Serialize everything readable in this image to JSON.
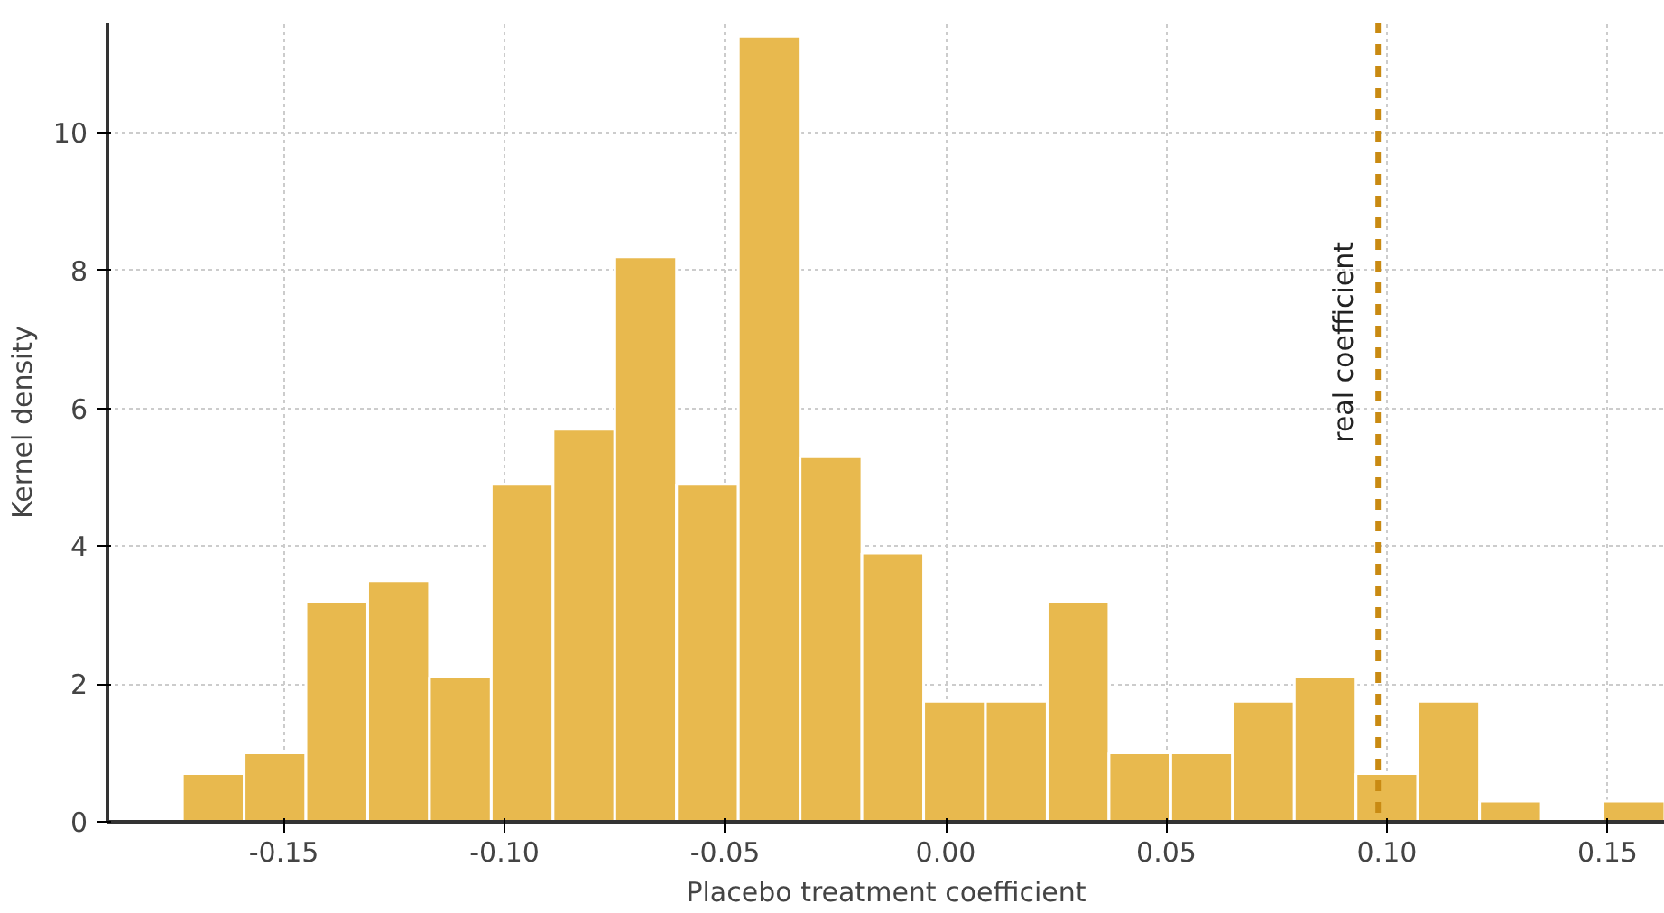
{
  "chart_data": {
    "type": "histogram",
    "xlabel": "Placebo treatment coefficient",
    "ylabel": "Kernel density",
    "bins": [
      -0.173,
      -0.159,
      -0.145,
      -0.131,
      -0.117,
      -0.103,
      -0.089,
      -0.075,
      -0.061,
      -0.047,
      -0.033,
      -0.019,
      -0.005,
      0.009,
      0.023,
      0.037,
      0.051,
      0.065,
      0.079,
      0.093,
      0.107,
      0.121,
      0.135,
      0.149,
      0.163
    ],
    "values": [
      0.7,
      1.0,
      3.2,
      3.5,
      2.1,
      4.9,
      5.7,
      8.2,
      4.9,
      11.4,
      5.3,
      3.9,
      1.75,
      1.75,
      3.2,
      1.0,
      1.0,
      1.75,
      2.1,
      0.7,
      1.75,
      0.3,
      0,
      0.3
    ],
    "color": "#e8b94e",
    "xlim": [
      -0.19,
      0.163
    ],
    "ylim": [
      0,
      11.6
    ],
    "xticks": [
      {
        "value": -0.15,
        "label": "-0.15"
      },
      {
        "value": -0.1,
        "label": "-0.10"
      },
      {
        "value": -0.05,
        "label": "-0.05"
      },
      {
        "value": 0,
        "label": "0.00"
      },
      {
        "value": 0.05,
        "label": "0.05"
      },
      {
        "value": 0.1,
        "label": "0.10"
      },
      {
        "value": 0.15,
        "label": "0.15"
      }
    ],
    "yticks": [
      0,
      2,
      4,
      6,
      8,
      10
    ],
    "grid": true,
    "ref_lines": [
      {
        "axis": "x",
        "value": 0.098,
        "label": "real coefficient",
        "color": "#c98a12",
        "line_style": "dashed"
      }
    ]
  }
}
